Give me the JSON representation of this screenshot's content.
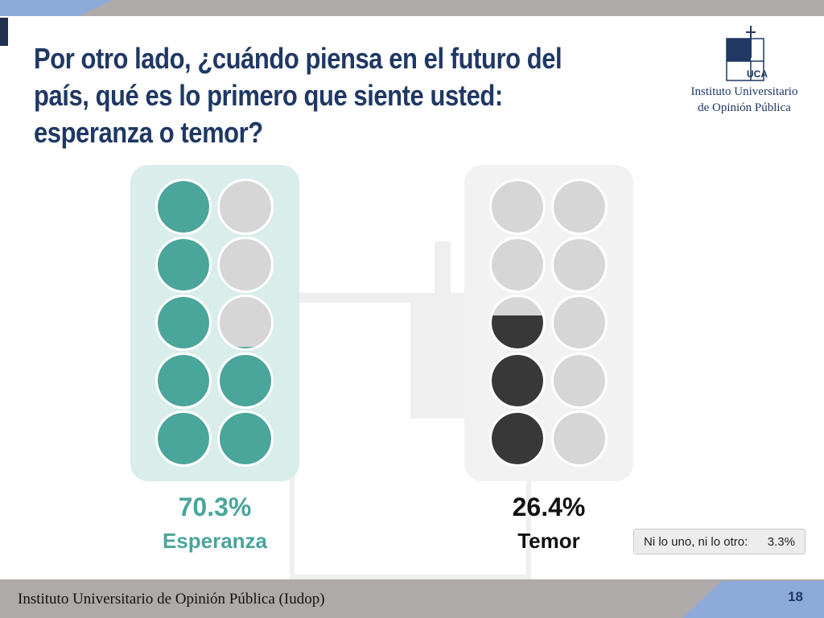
{
  "title": "Por otro lado, ¿cuándo piensa en el futuro del país, qué es lo primero que siente usted: esperanza o temor?",
  "logo": {
    "line1": "Instituto Universitario",
    "line2": "de Opinión Pública",
    "mark_text": "UCA"
  },
  "chart_data": {
    "type": "pictogram",
    "units_per_icon": 10,
    "icons_per_group": 10,
    "series": [
      {
        "name": "Esperanza",
        "value": 70.3,
        "label": "70.3%",
        "color": "#4aa59b",
        "panel_color": "#d9edea"
      },
      {
        "name": "Temor",
        "value": 26.4,
        "label": "26.4%",
        "color": "#383838",
        "panel_color": "#f2f2f2"
      }
    ],
    "empty_color": "#d6d6d6",
    "other": {
      "label": "Ni lo uno, ni lo otro:",
      "value": "3.3%"
    }
  },
  "footer": {
    "text": "Instituto Universitario de Opinión Pública (Iudop)",
    "page": "18"
  }
}
